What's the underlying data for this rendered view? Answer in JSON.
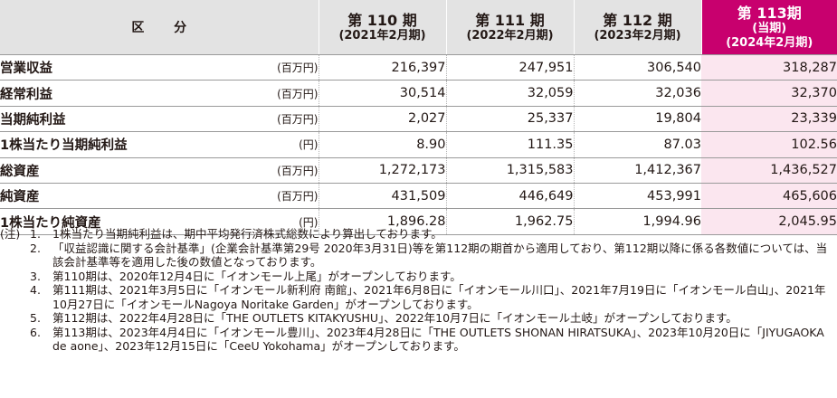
{
  "header": {
    "label": "区 分",
    "periods": [
      {
        "title": "第 110 期",
        "date": "(2021年2月期)"
      },
      {
        "title": "第 111 期",
        "date": "(2022年2月期)"
      },
      {
        "title": "第 112 期",
        "date": "(2023年2月期)"
      },
      {
        "title": "第 113期",
        "current": "(当期)",
        "date": "(2024年2月期)"
      }
    ]
  },
  "rows": [
    {
      "label": "営業収益",
      "unit": "(百万円)",
      "values": [
        "216,397",
        "247,951",
        "306,540",
        "318,287"
      ]
    },
    {
      "label": "経常利益",
      "unit": "(百万円)",
      "values": [
        "30,514",
        "32,059",
        "32,036",
        "32,370"
      ]
    },
    {
      "label": "当期純利益",
      "unit": "(百万円)",
      "values": [
        "2,027",
        "25,337",
        "19,804",
        "23,339"
      ]
    },
    {
      "label": "1株当たり当期純利益",
      "unit": "(円)",
      "values": [
        "8.90",
        "111.35",
        "87.03",
        "102.56"
      ]
    },
    {
      "label": "総資産",
      "unit": "(百万円)",
      "values": [
        "1,272,173",
        "1,315,583",
        "1,412,367",
        "1,436,527"
      ]
    },
    {
      "label": "純資産",
      "unit": "(百万円)",
      "values": [
        "431,509",
        "446,649",
        "453,991",
        "465,606"
      ]
    },
    {
      "label": "1株当たり純資産",
      "unit": "(円)",
      "values": [
        "1,896.28",
        "1,962.75",
        "1,994.96",
        "2,045.95"
      ]
    }
  ],
  "notes": {
    "prefix": "(注)",
    "items": [
      {
        "no": "1.",
        "text": "1株当たり当期純利益は、期中平均発行済株式総数により算出しております。"
      },
      {
        "no": "2.",
        "text": "「収益認識に関する会計基準」(企業会計基準第29号 2020年3月31日)等を第112期の期首から適用しており、第112期以降に係る各数値については、当該会計基準等を適用した後の数値となっております。"
      },
      {
        "no": "3.",
        "text": "第110期は、2020年12月4日に「イオンモール上尾」がオープンしております。"
      },
      {
        "no": "4.",
        "text": "第111期は、2021年3月5日に「イオンモール新利府 南館」、2021年6月8日に「イオンモール川口」、2021年7月19日に「イオンモール白山」、2021年10月27日に「イオンモールNagoya Noritake Garden」がオープンしております。"
      },
      {
        "no": "5.",
        "text": "第112期は、2022年4月28日に「THE OUTLETS KITAKYUSHU」、2022年10月7日に「イオンモール土岐」がオープンしております。"
      },
      {
        "no": "6.",
        "text": "第113期は、2023年4月4日に「イオンモール豊川」、2023年4月28日に「THE OUTLETS SHONAN HIRATSUKA」、2023年10月20日に「JIYUGAOKA de aone」、2023年12月15日に「CeeU Yokohama」がオープンしております。"
      }
    ]
  }
}
